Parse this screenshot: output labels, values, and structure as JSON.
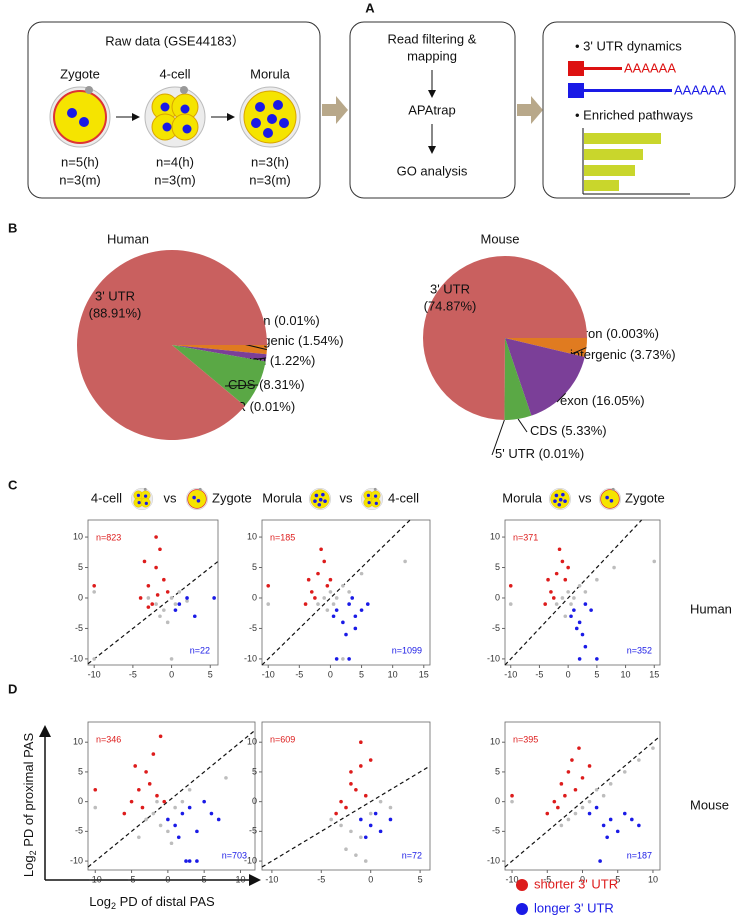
{
  "diagram": {
    "panel_labels": [
      "A",
      "B",
      "C",
      "D"
    ],
    "raw_title": "Raw data (GSE44183）",
    "stages": [
      "Zygote",
      "4-cell",
      "Morula"
    ],
    "n_human": [
      "n=5(h)",
      "n=4(h)",
      "n=3(h)"
    ],
    "n_mouse": [
      "n=3(m)",
      "n=3(m)",
      "n=3(m)"
    ],
    "steps": [
      "Read filtering &",
      "mapping",
      "APAtrap",
      "GO analysis"
    ],
    "results": [
      "• 3' UTR dynamics",
      "AAAAAA",
      "AAAAAA",
      "• Enriched pathways"
    ],
    "species": [
      "Human",
      "Mouse"
    ],
    "axis_log": "Log",
    "axis_sub": "2",
    "ylabel": " PD of proximal PAS",
    "xlabel": " PD of distal PAS"
  },
  "chart_data": [
    {
      "type": "pie",
      "title": "Human",
      "categories": [
        "intron",
        "intergenic",
        "exon",
        "CDS",
        "5' UTR",
        "3' UTR"
      ],
      "values": [
        0.01,
        1.54,
        1.22,
        8.31,
        0.01,
        88.91
      ],
      "value_labels": [
        "(0.01%)",
        "(1.54%)",
        "(1.22%)",
        "(8.31%)",
        "(0.01%)",
        "(88.91%)"
      ],
      "colors": [
        "#e07b20",
        "#e07b20",
        "#7b3f98",
        "#5aa845",
        "#5aa845",
        "#c9605f"
      ]
    },
    {
      "type": "pie",
      "title": "Mouse",
      "categories": [
        "intron",
        "intergenic",
        "exon",
        "CDS",
        "5' UTR",
        "3' UTR"
      ],
      "values": [
        0.003,
        3.73,
        16.05,
        5.33,
        0.01,
        74.87
      ],
      "value_labels": [
        "(0.003%)",
        "(3.73%)",
        "(16.05%)",
        "(5.33%)",
        "(0.01%)",
        "(74.87%)"
      ],
      "colors": [
        "#e07b20",
        "#e07b20",
        "#7b3f98",
        "#5aa845",
        "#5aa845",
        "#c9605f"
      ]
    },
    {
      "type": "scatter",
      "title_parts": [
        "4-cell",
        "vs",
        "Zygote"
      ],
      "annotations": [
        "n=823",
        "n=22"
      ],
      "xlim": [
        -10.8,
        6
      ],
      "ylim": [
        -11,
        12.8
      ],
      "xticks": [
        -10,
        -5,
        0,
        5
      ],
      "yticks": [
        -10,
        -5,
        0,
        5,
        10
      ],
      "series": [
        {
          "name": "shorter 3' UTR",
          "color": "#dd1c1c",
          "x": [
            -3,
            -2,
            -1.5,
            -4,
            -2.5,
            -1,
            -3.5,
            -2,
            -0.5,
            -10,
            -3,
            -1.8
          ],
          "values": [
            2,
            5,
            8,
            0,
            -1,
            3,
            6,
            10,
            1,
            2,
            -1.5,
            0.5
          ]
        },
        {
          "name": "longer 3' UTR",
          "color": "#1a1ae6",
          "x": [
            1,
            2,
            0.5,
            3,
            5.5
          ],
          "values": [
            -1,
            0,
            -2,
            -3,
            0
          ]
        },
        {
          "color": "#bdbdbd",
          "x": [
            -2,
            -1,
            0,
            1,
            -3,
            0.5,
            -1.5,
            2,
            -0.5,
            -10,
            -10,
            0
          ],
          "values": [
            -1,
            -2,
            0,
            1,
            0,
            -1,
            -3,
            -0.5,
            -4,
            1,
            -10,
            -10
          ]
        }
      ]
    },
    {
      "type": "scatter",
      "title_parts": [
        "Morula",
        "vs",
        "4-cell"
      ],
      "annotations": [
        "n=185",
        "n=1099"
      ],
      "xlim": [
        -11,
        16
      ],
      "ylim": [
        -11,
        12.8
      ],
      "xticks": [
        -10,
        -5,
        0,
        5,
        10,
        15
      ],
      "yticks": [
        -10,
        -5,
        0,
        5,
        10
      ],
      "series": [
        {
          "name": "shorter 3' UTR",
          "color": "#dd1c1c",
          "x": [
            -3,
            -2,
            -1,
            -4,
            0,
            -2.5,
            -1.5,
            -10,
            -3.5,
            -0.5
          ],
          "values": [
            1,
            4,
            6,
            -1,
            3,
            0,
            8,
            2,
            3,
            2
          ]
        },
        {
          "name": "longer 3' UTR",
          "color": "#1a1ae6",
          "x": [
            1,
            2,
            3,
            4,
            5,
            2.5,
            0.5,
            3.5,
            6,
            1,
            3,
            4
          ],
          "values": [
            -2,
            -4,
            -1,
            -3,
            -2,
            -6,
            -3,
            0,
            -1,
            -10,
            -10,
            -5
          ]
        },
        {
          "color": "#bdbdbd",
          "x": [
            -1,
            0,
            1,
            2,
            -2,
            3,
            0.5,
            -0.5,
            5,
            12,
            -10,
            2
          ],
          "values": [
            0,
            1,
            0,
            2,
            -1,
            1,
            -1,
            -2,
            4,
            6,
            -1,
            -10
          ]
        }
      ]
    },
    {
      "type": "scatter",
      "title_parts": [
        "Morula",
        "vs",
        "Zygote"
      ],
      "annotations": [
        "n=371",
        "n=352"
      ],
      "xlim": [
        -11,
        16
      ],
      "ylim": [
        -11,
        12.8
      ],
      "xticks": [
        -10,
        -5,
        0,
        5,
        10,
        15
      ],
      "yticks": [
        -10,
        -5,
        0,
        5,
        10
      ],
      "series": [
        {
          "name": "shorter 3' UTR",
          "color": "#dd1c1c",
          "x": [
            -3,
            -2,
            -1,
            -4,
            -0.5,
            -2.5,
            -1.5,
            -10,
            -3.5,
            0
          ],
          "values": [
            1,
            4,
            6,
            -1,
            3,
            0,
            8,
            2,
            3,
            5
          ]
        },
        {
          "name": "longer 3' UTR",
          "color": "#1a1ae6",
          "x": [
            1,
            2,
            3,
            0.5,
            2.5,
            1.5,
            3,
            4,
            2,
            5
          ],
          "values": [
            -2,
            -4,
            -1,
            -3,
            -6,
            -5,
            -8,
            -2,
            -10,
            -10
          ]
        },
        {
          "color": "#bdbdbd",
          "x": [
            -1,
            0,
            1,
            2,
            -2,
            3,
            5,
            8,
            -10,
            0.5,
            15,
            -0.5
          ],
          "values": [
            0,
            1,
            0,
            2,
            -1,
            1,
            3,
            5,
            -1,
            -1,
            6,
            -3
          ]
        }
      ]
    },
    {
      "type": "scatter",
      "annotations": [
        "n=346",
        "n=703"
      ],
      "xlim": [
        -11,
        12
      ],
      "ylim": [
        -11.5,
        13.4
      ],
      "xticks": [
        -10,
        -5,
        0,
        5,
        10
      ],
      "yticks": [
        -10,
        -5,
        0,
        5,
        10
      ],
      "series": [
        {
          "name": "shorter 3' UTR",
          "color": "#dd1c1c",
          "x": [
            -4,
            -3,
            -2,
            -1,
            -5,
            -3.5,
            -2.5,
            -1.5,
            -6,
            -10,
            -0.5,
            -4.5
          ],
          "values": [
            2,
            5,
            8,
            11,
            0,
            -1,
            3,
            1,
            -2,
            2,
            0,
            6
          ]
        },
        {
          "name": "longer 3' UTR",
          "color": "#1a1ae6",
          "x": [
            0,
            1,
            2,
            3,
            4,
            5,
            6,
            1.5,
            2.5,
            3,
            7,
            4
          ],
          "values": [
            -3,
            -4,
            -2,
            -1,
            -5,
            0,
            -2,
            -6,
            -10,
            -10,
            -3,
            -10
          ]
        },
        {
          "color": "#bdbdbd",
          "x": [
            -3,
            -2,
            -1,
            0,
            1,
            2,
            -4,
            0.5,
            -1.5,
            -10,
            8,
            3
          ],
          "values": [
            -3,
            -2,
            -4,
            -5,
            -1,
            0,
            -6,
            -7,
            0,
            -1,
            4,
            2
          ]
        }
      ]
    },
    {
      "type": "scatter",
      "annotations": [
        "n=609",
        "n=72"
      ],
      "xlim": [
        -11,
        6
      ],
      "ylim": [
        -11.5,
        13.4
      ],
      "xticks": [
        -10,
        -5,
        0,
        5
      ],
      "yticks": [
        -10,
        -5,
        0,
        5,
        10
      ],
      "series": [
        {
          "name": "shorter 3' UTR",
          "color": "#dd1c1c",
          "x": [
            -3,
            -2,
            -1,
            -2.5,
            -1.5,
            -0.5,
            -3.5,
            -2,
            -1,
            0
          ],
          "values": [
            0,
            3,
            6,
            -1,
            2,
            1,
            -2,
            5,
            10,
            7
          ]
        },
        {
          "name": "longer 3' UTR",
          "color": "#1a1ae6",
          "x": [
            -1,
            0,
            0.5,
            1,
            2,
            -0.5
          ],
          "values": [
            -3,
            -4,
            -2,
            -5,
            -3,
            -6
          ]
        },
        {
          "color": "#bdbdbd",
          "x": [
            -3,
            -2,
            -1,
            0,
            -4,
            -2.5,
            1,
            -1.5,
            2,
            -0.5
          ],
          "values": [
            -4,
            -5,
            -6,
            -2,
            -3,
            -8,
            0,
            -9,
            -1,
            -10
          ]
        }
      ]
    },
    {
      "type": "scatter",
      "annotations": [
        "n=395",
        "n=187"
      ],
      "xlim": [
        -11,
        11
      ],
      "ylim": [
        -11.5,
        13.4
      ],
      "xticks": [
        -10,
        -5,
        0,
        5,
        10
      ],
      "yticks": [
        -10,
        -5,
        0,
        5,
        10
      ],
      "series": [
        {
          "name": "shorter 3' UTR",
          "color": "#dd1c1c",
          "x": [
            -4,
            -3,
            -2,
            -1,
            0,
            -3.5,
            -2.5,
            -1.5,
            -5,
            -10,
            1,
            -0.5
          ],
          "values": [
            0,
            3,
            5,
            2,
            4,
            -1,
            1,
            7,
            -2,
            1,
            6,
            9
          ]
        },
        {
          "name": "longer 3' UTR",
          "color": "#1a1ae6",
          "x": [
            1,
            2,
            3,
            4,
            5,
            6,
            7,
            3.5,
            8,
            2.5
          ],
          "values": [
            -2,
            -1,
            -4,
            -3,
            -5,
            -2,
            -3,
            -6,
            -4,
            -10
          ]
        },
        {
          "color": "#bdbdbd",
          "x": [
            -2,
            -1,
            0,
            1,
            2,
            3,
            -3,
            4,
            6,
            8,
            10,
            -10
          ],
          "values": [
            -3,
            -2,
            -1,
            0,
            2,
            1,
            -4,
            3,
            5,
            7,
            9,
            0
          ]
        }
      ]
    }
  ]
}
